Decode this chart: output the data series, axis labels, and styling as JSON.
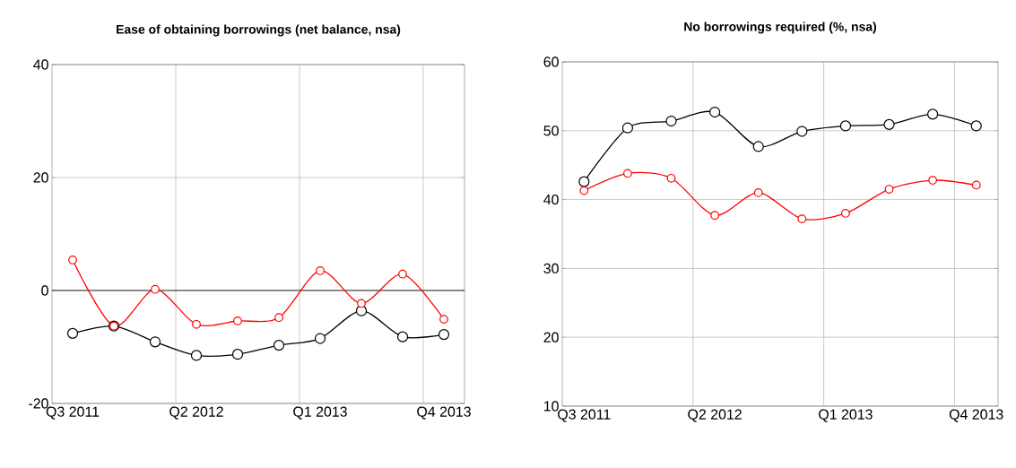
{
  "chart_data": [
    {
      "type": "line",
      "title": "Ease of obtaining borrowings  (net balance, nsa)",
      "categories": [
        "Q3 2011",
        null,
        null,
        "Q2 2012",
        null,
        null,
        "Q1 2013",
        null,
        null,
        "Q4 2013"
      ],
      "series": [
        {
          "color": "#000000",
          "values": [
            -7.6,
            -6.3,
            -9.1,
            -11.5,
            -11.3,
            -9.7,
            -8.5,
            -3.6,
            -8.2,
            -7.8
          ]
        },
        {
          "color": "#ff0000",
          "values": [
            5.4,
            -6.3,
            0.2,
            -6.0,
            -5.4,
            -4.8,
            3.5,
            -2.3,
            2.9,
            -5.1
          ]
        }
      ],
      "ylim": [
        -20,
        40
      ],
      "yticks": [
        -20,
        0,
        20,
        40
      ],
      "grid": true,
      "marker": "circle",
      "line_style": "solid",
      "ref_lines": [
        {
          "axis": "y",
          "value": 0,
          "color": "#000000"
        }
      ]
    },
    {
      "type": "line",
      "title": "No borrowings required (%, nsa)",
      "categories": [
        "Q3 2011",
        null,
        null,
        "Q2 2012",
        null,
        null,
        "Q1 2013",
        null,
        null,
        "Q4 2013"
      ],
      "series": [
        {
          "color": "#000000",
          "values": [
            42.6,
            50.4,
            51.4,
            52.7,
            47.7,
            49.9,
            50.7,
            50.9,
            52.4,
            50.7
          ]
        },
        {
          "color": "#ff0000",
          "values": [
            41.3,
            43.8,
            43.1,
            37.7,
            41.0,
            37.2,
            38.0,
            41.5,
            42.8,
            42.1
          ]
        }
      ],
      "ylim": [
        10,
        60
      ],
      "yticks": [
        10,
        20,
        30,
        40,
        50,
        60
      ],
      "grid": true,
      "marker": "circle",
      "line_style": "solid"
    }
  ]
}
